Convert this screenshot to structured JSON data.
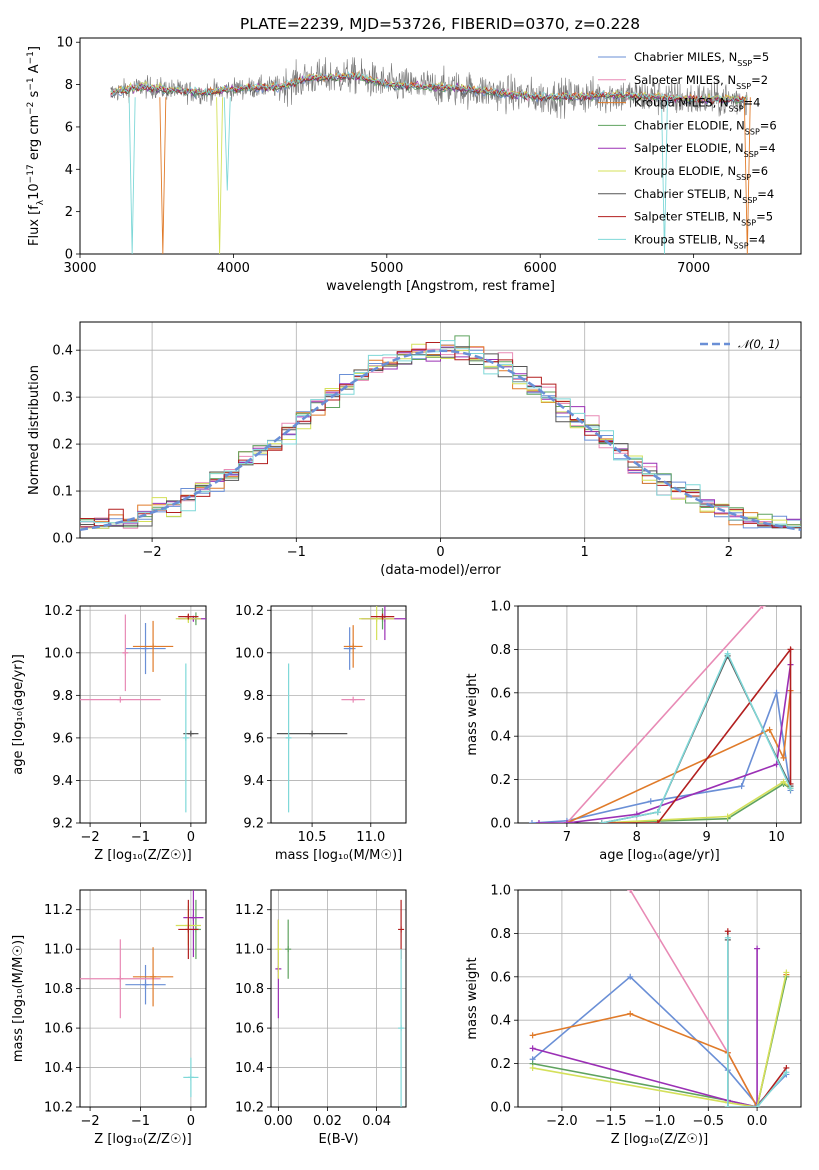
{
  "figure": {
    "title": "PLATE=2239, MJD=53726, FIBERID=0370, z=0.228"
  },
  "models": [
    {
      "name": "Chabrier MILES, N$_{SSP}$=5",
      "label": "Chabrier MILES, N",
      "sub": "SSP",
      "n": "=5",
      "color": "#6a8fd6"
    },
    {
      "name": "Salpeter MILES, N$_{SSP}$=2",
      "label": "Salpeter MILES, N",
      "sub": "SSP",
      "n": "=2",
      "color": "#e88ab5"
    },
    {
      "name": "Kroupa MILES, N$_{SSP}$=4",
      "label": "Kroupa MILES, N",
      "sub": "SSP",
      "n": "=4",
      "color": "#e07b2a"
    },
    {
      "name": "Chabrier ELODIE, N$_{SSP}$=6",
      "label": "Chabrier ELODIE, N",
      "sub": "SSP",
      "n": "=6",
      "color": "#5fa35f"
    },
    {
      "name": "Salpeter ELODIE, N$_{SSP}$=4",
      "label": "Salpeter ELODIE, N",
      "sub": "SSP",
      "n": "=4",
      "color": "#9b30b5"
    },
    {
      "name": "Kroupa ELODIE, N$_{SSP}$=6",
      "label": "Kroupa ELODIE, N",
      "sub": "SSP",
      "n": "=6",
      "color": "#d4e05a"
    },
    {
      "name": "Chabrier STELIB, N$_{SSP}$=4",
      "label": "Chabrier STELIB, N",
      "sub": "SSP",
      "n": "=4",
      "color": "#555555"
    },
    {
      "name": "Salpeter STELIB, N$_{SSP}$=5",
      "label": "Salpeter STELIB, N",
      "sub": "SSP",
      "n": "=5",
      "color": "#b21f1f"
    },
    {
      "name": "Kroupa STELIB, N$_{SSP}$=4",
      "label": "Kroupa STELIB, N",
      "sub": "SSP",
      "n": "=4",
      "color": "#7fd8d8"
    }
  ],
  "chart_data": [
    {
      "id": "spectrum",
      "type": "line",
      "xlabel": "wavelength [Angstrom, rest frame]",
      "ylabel": "Flux [f$_\\lambda$10$^{-17}$ erg cm$^{-2}$ s$^{-1}$ A$^{-1}$]",
      "ylabel_parts": [
        "Flux [f",
        "λ",
        "10",
        "−17",
        " erg cm",
        "−2",
        " s",
        "−1",
        " A",
        "−1",
        "]"
      ],
      "xlim": [
        3000,
        7700
      ],
      "ylim": [
        0,
        10.2
      ],
      "xticks": [
        3000,
        4000,
        5000,
        6000,
        7000
      ],
      "yticks": [
        0,
        2,
        4,
        6,
        8,
        10
      ],
      "grid": false,
      "legend": "top-right",
      "data_x_range": [
        3200,
        7350
      ],
      "continuum": [
        [
          3200,
          7.6
        ],
        [
          3400,
          7.9
        ],
        [
          3800,
          7.6
        ],
        [
          4000,
          7.8
        ],
        [
          4300,
          7.9
        ],
        [
          4500,
          8.3
        ],
        [
          4800,
          8.4
        ],
        [
          5000,
          8.0
        ],
        [
          5500,
          7.8
        ],
        [
          6000,
          7.4
        ],
        [
          6500,
          7.5
        ],
        [
          7000,
          7.3
        ],
        [
          7350,
          7.3
        ]
      ],
      "observed_noise_sigma": 0.6,
      "features": [
        {
          "x": 3340,
          "y": 0,
          "series": "Kroupa STELIB"
        },
        {
          "x": 3540,
          "y": 0,
          "series": "Kroupa MILES"
        },
        {
          "x": 3910,
          "y": 0,
          "series": "Kroupa ELODIE"
        },
        {
          "x": 3960,
          "y": 3.0,
          "series": "Kroupa STELIB"
        },
        {
          "x": 6810,
          "y": 0,
          "series": "Kroupa STELIB"
        },
        {
          "x": 7350,
          "y": 0,
          "series": "Kroupa MILES"
        }
      ],
      "xticklabels": [
        "3000",
        "4000",
        "5000",
        "6000",
        "7000"
      ],
      "yticklabels": [
        "0",
        "2",
        "4",
        "6",
        "8",
        "10"
      ]
    },
    {
      "id": "residuals",
      "type": "histogram",
      "xlabel": "(data-model)/error",
      "ylabel": "Normed distribution",
      "xlim": [
        -2.5,
        2.5
      ],
      "ylim": [
        0,
        0.46
      ],
      "xticks": [
        -2,
        -1,
        0,
        1,
        2
      ],
      "yticks": [
        0.0,
        0.1,
        0.2,
        0.3,
        0.4
      ],
      "xticklabels": [
        "−2",
        "−1",
        "0",
        "1",
        "2"
      ],
      "yticklabels": [
        "0.0",
        "0.1",
        "0.2",
        "0.3",
        "0.4"
      ],
      "grid": true,
      "legend": "top-right",
      "reference_curve": {
        "label": "𝒩(0, 1)",
        "mean": 0,
        "sigma": 1
      },
      "bin_width": 0.1,
      "bin_start": -2.5
    },
    {
      "id": "age-vs-Z",
      "type": "scatter",
      "xlabel": "Z [log₁₀(Z/Z☉)]",
      "ylabel": "age  [log₁₀(age/yr)]",
      "xlim": [
        -2.2,
        0.3
      ],
      "ylim": [
        9.2,
        10.22
      ],
      "xticks": [
        -2,
        -1,
        0
      ],
      "xticklabels": [
        "−2",
        "−1",
        "0"
      ],
      "yticks": [
        9.2,
        9.4,
        9.6,
        9.8,
        10.0,
        10.2
      ],
      "yticklabels": [
        "9.2",
        "9.4",
        "9.6",
        "9.8",
        "10.0",
        "10.2"
      ],
      "grid": true,
      "points": [
        {
          "series": "Chabrier MILES",
          "x": -0.9,
          "xerr": 0.4,
          "y": 10.02,
          "yerr": 0.12
        },
        {
          "series": "Salpeter MILES",
          "x": -1.3,
          "xerr": 0.05,
          "y": 10.0,
          "yerr": 0.18
        },
        {
          "series": "Kroupa MILES",
          "x": -0.75,
          "xerr": 0.4,
          "y": 10.03,
          "yerr": 0.12
        },
        {
          "series": "Chabrier ELODIE",
          "x": 0.1,
          "xerr": 0.1,
          "y": 10.16,
          "yerr": 0.03
        },
        {
          "series": "Salpeter ELODIE",
          "x": 0.05,
          "xerr": 0.3,
          "y": 10.16,
          "yerr": 0.01
        },
        {
          "series": "Kroupa ELODIE",
          "x": -0.05,
          "xerr": 0.25,
          "y": 10.16,
          "yerr": 0.02
        },
        {
          "series": "Chabrier STELIB",
          "x": 0.0,
          "xerr": 0.15,
          "y": 9.62,
          "yerr": 0.01
        },
        {
          "series": "Salpeter STELIB",
          "x": -0.05,
          "xerr": 0.2,
          "y": 10.17,
          "yerr": 0.01
        },
        {
          "series": "Kroupa STELIB",
          "x": -0.1,
          "xerr": 0.02,
          "y": 9.6,
          "yerr": 0.35
        },
        {
          "series": "Salpeter MILES",
          "x": -1.4,
          "xerr": 0.8,
          "y": 9.78,
          "yerr": 0.0
        }
      ]
    },
    {
      "id": "age-vs-mass",
      "type": "scatter",
      "xlabel": "mass [log₁₀(M/M☉)]",
      "ylabel": "",
      "xlim": [
        10.15,
        11.3
      ],
      "ylim": [
        9.2,
        10.22
      ],
      "xticks": [
        10.5,
        11.0
      ],
      "xticklabels": [
        "10.5",
        "11.0"
      ],
      "yticks": [
        9.2,
        9.4,
        9.6,
        9.8,
        10.0,
        10.2
      ],
      "yticklabels": [
        "9.2",
        "9.4",
        "9.6",
        "9.8",
        "10.0",
        "10.2"
      ],
      "grid": true,
      "points": [
        {
          "series": "Chabrier MILES",
          "x": 10.82,
          "xerr": 0.05,
          "y": 10.02,
          "yerr": 0.1
        },
        {
          "series": "Salpeter MILES",
          "x": 10.85,
          "xerr": 0.1,
          "y": 9.78,
          "yerr": 0.0
        },
        {
          "series": "Kroupa MILES",
          "x": 10.85,
          "xerr": 0.08,
          "y": 10.03,
          "yerr": 0.1
        },
        {
          "series": "Chabrier ELODIE",
          "x": 11.1,
          "xerr": 0.05,
          "y": 10.16,
          "yerr": 0.05
        },
        {
          "series": "Salpeter ELODIE",
          "x": 11.12,
          "xerr": 0.2,
          "y": 10.16,
          "yerr": 0.1
        },
        {
          "series": "Kroupa ELODIE",
          "x": 11.05,
          "xerr": 0.15,
          "y": 10.16,
          "yerr": 0.1
        },
        {
          "series": "Chabrier STELIB",
          "x": 10.5,
          "xerr": 0.3,
          "y": 9.62,
          "yerr": 0.0
        },
        {
          "series": "Salpeter STELIB",
          "x": 11.1,
          "xerr": 0.1,
          "y": 10.17,
          "yerr": 0.01
        },
        {
          "series": "Kroupa STELIB",
          "x": 10.3,
          "xerr": 0.02,
          "y": 9.6,
          "yerr": 0.35
        }
      ]
    },
    {
      "id": "mass-weight-vs-age",
      "type": "line",
      "xlabel": "age  [log₁₀(age/yr)]",
      "ylabel": "mass weight",
      "xlim": [
        6.3,
        10.35
      ],
      "ylim": [
        0,
        1.0
      ],
      "xticks": [
        7,
        8,
        9,
        10
      ],
      "xticklabels": [
        "7",
        "8",
        "9",
        "10"
      ],
      "yticks": [
        0.0,
        0.2,
        0.4,
        0.6,
        0.8,
        1.0
      ],
      "yticklabels": [
        "0.0",
        "0.2",
        "0.4",
        "0.6",
        "0.8",
        "1.0"
      ],
      "grid": true,
      "series": [
        {
          "name": "Chabrier MILES",
          "points": [
            [
              6.5,
              0.0
            ],
            [
              7.0,
              0.01
            ],
            [
              8.2,
              0.1
            ],
            [
              9.5,
              0.17
            ],
            [
              10.0,
              0.6
            ],
            [
              10.2,
              0.15
            ]
          ]
        },
        {
          "name": "Salpeter MILES",
          "points": [
            [
              7.0,
              0.0
            ],
            [
              9.8,
              1.0
            ]
          ]
        },
        {
          "name": "Kroupa MILES",
          "points": [
            [
              7.0,
              0.0
            ],
            [
              9.9,
              0.43
            ],
            [
              10.1,
              0.3
            ],
            [
              10.2,
              0.61
            ]
          ]
        },
        {
          "name": "Chabrier ELODIE",
          "points": [
            [
              7.5,
              0.0
            ],
            [
              9.3,
              0.02
            ],
            [
              10.1,
              0.18
            ],
            [
              10.2,
              0.16
            ]
          ]
        },
        {
          "name": "Salpeter ELODIE",
          "points": [
            [
              6.6,
              0.0
            ],
            [
              7.0,
              0.0
            ],
            [
              8.0,
              0.04
            ],
            [
              10.0,
              0.27
            ],
            [
              10.2,
              0.73
            ]
          ]
        },
        {
          "name": "Kroupa ELODIE",
          "points": [
            [
              7.5,
              0.0
            ],
            [
              9.3,
              0.03
            ],
            [
              10.1,
              0.19
            ],
            [
              10.2,
              0.16
            ]
          ]
        },
        {
          "name": "Chabrier STELIB",
          "points": [
            [
              7.5,
              0.0
            ],
            [
              8.3,
              0.05
            ],
            [
              9.3,
              0.77
            ],
            [
              10.2,
              0.17
            ]
          ]
        },
        {
          "name": "Salpeter STELIB",
          "points": [
            [
              7.5,
              0.0
            ],
            [
              8.3,
              0.0
            ],
            [
              10.2,
              0.8
            ],
            [
              10.2,
              0.18
            ]
          ]
        },
        {
          "name": "Kroupa STELIB",
          "points": [
            [
              7.5,
              0.0
            ],
            [
              8.3,
              0.05
            ],
            [
              9.3,
              0.78
            ],
            [
              10.2,
              0.16
            ]
          ]
        }
      ]
    },
    {
      "id": "mass-vs-Z",
      "type": "scatter",
      "xlabel": "Z [log₁₀(Z/Z☉)]",
      "ylabel": "mass [log₁₀(M/M☉)]",
      "xlim": [
        -2.2,
        0.3
      ],
      "ylim": [
        10.2,
        11.3
      ],
      "xticks": [
        -2,
        -1,
        0
      ],
      "xticklabels": [
        "−2",
        "−1",
        "0"
      ],
      "yticks": [
        10.2,
        10.4,
        10.6,
        10.8,
        11.0,
        11.2
      ],
      "yticklabels": [
        "10.2",
        "10.4",
        "10.6",
        "10.8",
        "11.0",
        "11.2"
      ],
      "grid": true,
      "points": [
        {
          "series": "Chabrier MILES",
          "x": -0.9,
          "xerr": 0.4,
          "y": 10.82,
          "yerr": 0.1
        },
        {
          "series": "Salpeter MILES",
          "x": -1.4,
          "xerr": 0.8,
          "y": 10.85,
          "yerr": 0.2
        },
        {
          "series": "Kroupa MILES",
          "x": -0.75,
          "xerr": 0.4,
          "y": 10.86,
          "yerr": 0.15
        },
        {
          "series": "Chabrier ELODIE",
          "x": 0.1,
          "xerr": 0.1,
          "y": 11.1,
          "yerr": 0.15
        },
        {
          "series": "Salpeter ELODIE",
          "x": 0.05,
          "xerr": 0.2,
          "y": 11.16,
          "yerr": 0.2
        },
        {
          "series": "Kroupa ELODIE",
          "x": -0.05,
          "xerr": 0.25,
          "y": 11.12,
          "yerr": 0.1
        },
        {
          "series": "Chabrier STELIB",
          "x": -0.5,
          "xerr": 1.2,
          "y": 10.18,
          "yerr": 0.0
        },
        {
          "series": "Salpeter STELIB",
          "x": -0.05,
          "xerr": 0.2,
          "y": 11.1,
          "yerr": 0.15
        },
        {
          "series": "Kroupa STELIB",
          "x": 0.0,
          "xerr": 0.15,
          "y": 10.35,
          "yerr": 0.1
        }
      ]
    },
    {
      "id": "mass-vs-EBV",
      "type": "scatter",
      "xlabel": "E(B-V)",
      "ylabel": "",
      "xlim": [
        -0.003,
        0.052
      ],
      "ylim": [
        10.2,
        11.3
      ],
      "xticks": [
        0.0,
        0.02,
        0.04
      ],
      "xticklabels": [
        "0.00",
        "0.02",
        "0.04"
      ],
      "yticks": [
        10.2,
        10.4,
        10.6,
        10.8,
        11.0,
        11.2
      ],
      "yticklabels": [
        "10.2",
        "10.4",
        "10.6",
        "10.8",
        "11.0",
        "11.2"
      ],
      "grid": true,
      "points": [
        {
          "series": "Salpeter ELODIE",
          "x": 0.0,
          "xerr": 0,
          "y": 10.9,
          "yerr": 0.25
        },
        {
          "series": "Kroupa ELODIE",
          "x": 0.0,
          "xerr": 0,
          "y": 11.0,
          "yerr": 0.15
        },
        {
          "series": "Chabrier ELODIE",
          "x": 0.004,
          "xerr": 0,
          "y": 11.0,
          "yerr": 0.15
        },
        {
          "series": "Salpeter STELIB",
          "x": 0.05,
          "xerr": 0,
          "y": 11.1,
          "yerr": 0.15
        },
        {
          "series": "Kroupa STELIB",
          "x": 0.05,
          "xerr": 0,
          "y": 10.6,
          "yerr": 0.4
        }
      ]
    },
    {
      "id": "mass-weight-vs-Z",
      "type": "line",
      "xlabel": "Z [log₁₀(Z/Z☉)]",
      "ylabel": "mass weight",
      "xlim": [
        -2.45,
        0.45
      ],
      "ylim": [
        0,
        1.0
      ],
      "xticks": [
        -2.0,
        -1.5,
        -1.0,
        -0.5,
        0.0
      ],
      "xticklabels": [
        "−2.0",
        "−1.5",
        "−1.0",
        "−0.5",
        "0.0"
      ],
      "yticks": [
        0.0,
        0.2,
        0.4,
        0.6,
        0.8,
        1.0
      ],
      "yticklabels": [
        "0.0",
        "0.2",
        "0.4",
        "0.6",
        "0.8",
        "1.0"
      ],
      "grid": true,
      "series": [
        {
          "name": "Chabrier MILES",
          "points": [
            [
              -2.3,
              0.22
            ],
            [
              -1.3,
              0.6
            ],
            [
              -0.3,
              0.17
            ],
            [
              0.0,
              0.01
            ],
            [
              0.3,
              0.15
            ]
          ]
        },
        {
          "name": "Salpeter MILES",
          "points": [
            [
              -1.3,
              1.0
            ],
            [
              -0.3,
              0.25
            ],
            [
              0.0,
              0.0
            ]
          ]
        },
        {
          "name": "Kroupa MILES",
          "points": [
            [
              -2.3,
              0.33
            ],
            [
              -1.3,
              0.43
            ],
            [
              -0.3,
              0.25
            ],
            [
              0.0,
              0.0
            ],
            [
              0.3,
              0.61
            ]
          ]
        },
        {
          "name": "Chabrier ELODIE",
          "points": [
            [
              -2.3,
              0.2
            ],
            [
              -0.3,
              0.03
            ],
            [
              0.0,
              0.0
            ],
            [
              0.3,
              0.6
            ]
          ]
        },
        {
          "name": "Salpeter ELODIE",
          "points": [
            [
              -2.3,
              0.27
            ],
            [
              -0.3,
              0.03
            ],
            [
              0.0,
              0.0
            ],
            [
              0.0,
              0.73
            ]
          ]
        },
        {
          "name": "Kroupa ELODIE",
          "points": [
            [
              -2.3,
              0.18
            ],
            [
              -0.3,
              0.02
            ],
            [
              0.0,
              0.0
            ],
            [
              0.3,
              0.62
            ]
          ]
        },
        {
          "name": "Chabrier STELIB",
          "points": [
            [
              -0.3,
              0.77
            ],
            [
              -0.3,
              0.0
            ],
            [
              0.0,
              0.0
            ]
          ]
        },
        {
          "name": "Salpeter STELIB",
          "points": [
            [
              -0.3,
              0.81
            ],
            [
              -0.3,
              0.0
            ],
            [
              0.0,
              0.0
            ],
            [
              0.3,
              0.18
            ]
          ]
        },
        {
          "name": "Kroupa STELIB",
          "points": [
            [
              -0.3,
              0.78
            ],
            [
              -0.3,
              0.0
            ],
            [
              0.0,
              0.0
            ],
            [
              0.3,
              0.16
            ]
          ]
        }
      ]
    }
  ]
}
